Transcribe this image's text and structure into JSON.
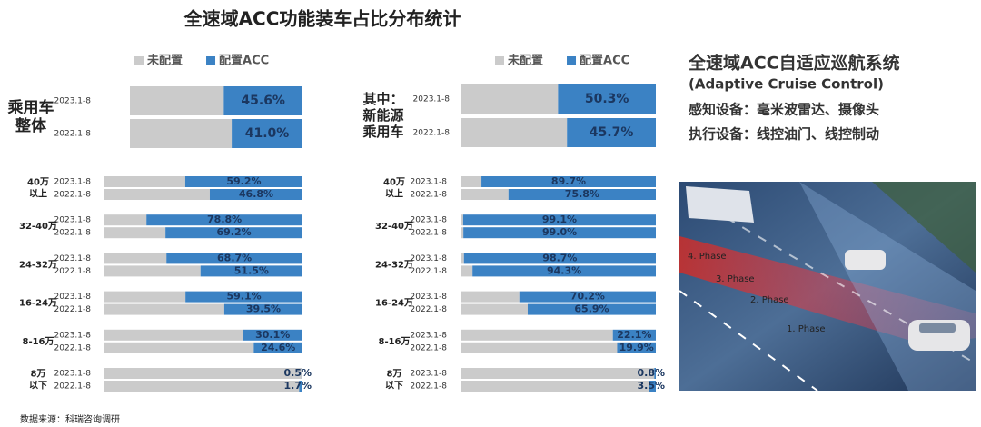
{
  "title": "全速域ACC功能装车占比分布统计",
  "chart_data": [
    {
      "type": "bar",
      "orientation": "horizontal",
      "stacked": true,
      "xlim": [
        0,
        100
      ],
      "group_labels": [
        [
          "乘用车",
          "整体"
        ]
      ],
      "categories": [
        "2023.1-8",
        "2022.1-8"
      ],
      "series": [
        {
          "name": "未配置",
          "color": "#cbcbcb",
          "values": [
            54.4,
            59.0
          ]
        },
        {
          "name": "配置ACC",
          "color": "#3b82c4",
          "values": [
            45.6,
            41.0
          ],
          "value_labels": [
            "45.6%",
            "41.0%"
          ]
        }
      ]
    },
    {
      "type": "bar",
      "orientation": "horizontal",
      "stacked": true,
      "xlim": [
        0,
        100
      ],
      "group_labels": [
        [
          "40万",
          "以上"
        ],
        [
          "32-40万"
        ],
        [
          "24-32万"
        ],
        [
          "16-24万"
        ],
        [
          "8-16万"
        ],
        [
          "8万",
          "以下"
        ]
      ],
      "categories": [
        "2023.1-8",
        "2022.1-8",
        "2023.1-8",
        "2022.1-8",
        "2023.1-8",
        "2022.1-8",
        "2023.1-8",
        "2022.1-8",
        "2023.1-8",
        "2022.1-8",
        "2023.1-8",
        "2022.1-8"
      ],
      "series": [
        {
          "color": "#cbcbcb",
          "values": [
            40.8,
            53.2,
            21.2,
            30.8,
            31.3,
            48.5,
            40.9,
            60.5,
            69.9,
            75.4,
            99.5,
            98.3
          ]
        },
        {
          "color": "#3b82c4",
          "values": [
            59.2,
            46.8,
            78.8,
            69.2,
            68.7,
            51.5,
            59.1,
            39.5,
            30.1,
            24.6,
            0.5,
            1.7
          ],
          "value_labels": [
            "59.2%",
            "46.8%",
            "78.8%",
            "69.2%",
            "68.7%",
            "51.5%",
            "59.1%",
            "39.5%",
            "30.1%",
            "24.6%",
            "0.5%",
            "1.7%"
          ]
        }
      ]
    },
    {
      "type": "bar",
      "orientation": "horizontal",
      "stacked": true,
      "xlim": [
        0,
        100
      ],
      "group_labels": [
        [
          "其中：",
          "新能源",
          "乘用车"
        ]
      ],
      "categories": [
        "2023.1-8",
        "2022.1-8"
      ],
      "series": [
        {
          "name": "未配置",
          "color": "#cbcbcb",
          "values": [
            49.7,
            54.3
          ]
        },
        {
          "name": "配置ACC",
          "color": "#3b82c4",
          "values": [
            50.3,
            45.7
          ],
          "value_labels": [
            "50.3%",
            "45.7%"
          ]
        }
      ]
    },
    {
      "type": "bar",
      "orientation": "horizontal",
      "stacked": true,
      "xlim": [
        0,
        100
      ],
      "group_labels": [
        [
          "40万",
          "以上"
        ],
        [
          "32-40万"
        ],
        [
          "24-32万"
        ],
        [
          "16-24万"
        ],
        [
          "8-16万"
        ],
        [
          "8万",
          "以下"
        ]
      ],
      "categories": [
        "2023.1-8",
        "2022.1-8",
        "2023.1-8",
        "2022.1-8",
        "2023.1-8",
        "2022.1-8",
        "2023.1-8",
        "2022.1-8",
        "2023.1-8",
        "2022.1-8",
        "2023.1-8",
        "2022.1-8"
      ],
      "series": [
        {
          "color": "#cbcbcb",
          "values": [
            10.3,
            24.2,
            0.9,
            1.0,
            1.3,
            5.7,
            29.8,
            34.1,
            77.9,
            80.1,
            99.2,
            96.5
          ]
        },
        {
          "color": "#3b82c4",
          "values": [
            89.7,
            75.8,
            99.1,
            99.0,
            98.7,
            94.3,
            70.2,
            65.9,
            22.1,
            19.9,
            0.8,
            3.5
          ],
          "value_labels": [
            "89.7%",
            "75.8%",
            "99.1%",
            "99.0%",
            "98.7%",
            "94.3%",
            "70.2%",
            "65.9%",
            "22.1%",
            "19.9%",
            "0.8%",
            "3.5%"
          ]
        }
      ]
    }
  ],
  "side": {
    "title": "全速域ACC自适应巡航系统",
    "subtitle": "(Adaptive Cruise Control)",
    "lines": [
      "感知设备：毫米波雷达、摄像头",
      "执行设备：线控油门、线控制动"
    ],
    "image_labels": [
      "4. Phase",
      "3. Phase",
      "2. Phase",
      "1. Phase"
    ]
  },
  "source": "数据来源：科瑞咨询调研"
}
